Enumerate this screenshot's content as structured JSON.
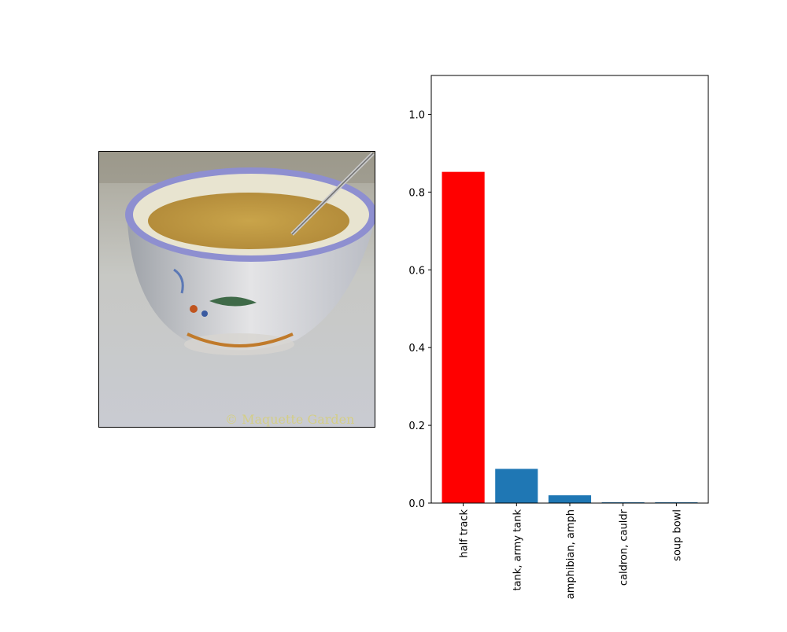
{
  "photo": {
    "subject": "soup-bowl-with-spoon-photo",
    "watermark": "© Maquette Garden"
  },
  "chart_data": {
    "type": "bar",
    "categories": [
      "half track",
      "tank, army tank",
      "amphibian, amph",
      "caldron, cauldr",
      "soup bowl"
    ],
    "values": [
      0.852,
      0.088,
      0.02,
      0.002,
      0.002
    ],
    "colors": [
      "#ff0000",
      "#1f77b4",
      "#1f77b4",
      "#1f77b4",
      "#1f77b4"
    ],
    "ylim": [
      0,
      1.1
    ],
    "yticks": [
      "0.0",
      "0.2",
      "0.4",
      "0.6",
      "0.8",
      "1.0"
    ],
    "title": "",
    "xlabel": "",
    "ylabel": ""
  }
}
